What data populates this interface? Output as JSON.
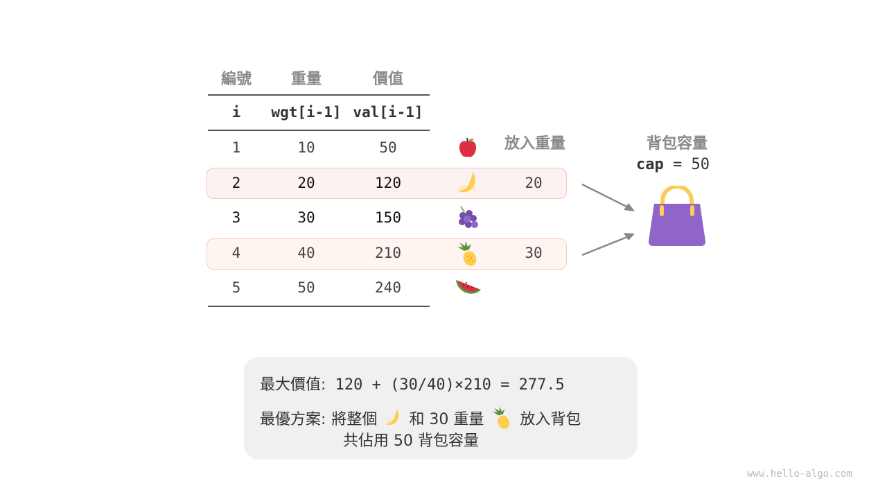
{
  "table": {
    "headers": [
      "編號",
      "重量",
      "價值"
    ],
    "subheaders": [
      "i",
      "wgt[i-1]",
      "val[i-1]"
    ],
    "rows": [
      {
        "i": "1",
        "wgt": "10",
        "val": "50",
        "fruit": "apple-icon",
        "taken": ""
      },
      {
        "i": "2",
        "wgt": "20",
        "val": "120",
        "fruit": "banana-icon",
        "taken": "20"
      },
      {
        "i": "3",
        "wgt": "30",
        "val": "150",
        "fruit": "grapes-icon",
        "taken": ""
      },
      {
        "i": "4",
        "wgt": "40",
        "val": "210",
        "fruit": "pineapple-icon",
        "taken": "30"
      },
      {
        "i": "5",
        "wgt": "50",
        "val": "240",
        "fruit": "watermelon-icon",
        "taken": ""
      }
    ],
    "taken_header": "放入重量"
  },
  "knapsack": {
    "title": "背包容量",
    "cap_label": "cap",
    "cap_eq": "= 50",
    "icon": "bag-icon",
    "color": "#9065c9"
  },
  "summary": {
    "max_label": "最大價值:",
    "max_formula": "120 + (30/40)×210 = 277.5",
    "plan_label": "最優方案:",
    "plan_part1": "將整個",
    "plan_part2": "和 30 重量",
    "plan_part3": "放入背包",
    "plan_line2": "共佔用 50 背包容量"
  },
  "watermark": "www.hello-algo.com",
  "colors": {
    "row_highlight_1": "#fdf2f2",
    "row_highlight_2": "#fef5f0",
    "accent_bag": "#9065c9"
  }
}
